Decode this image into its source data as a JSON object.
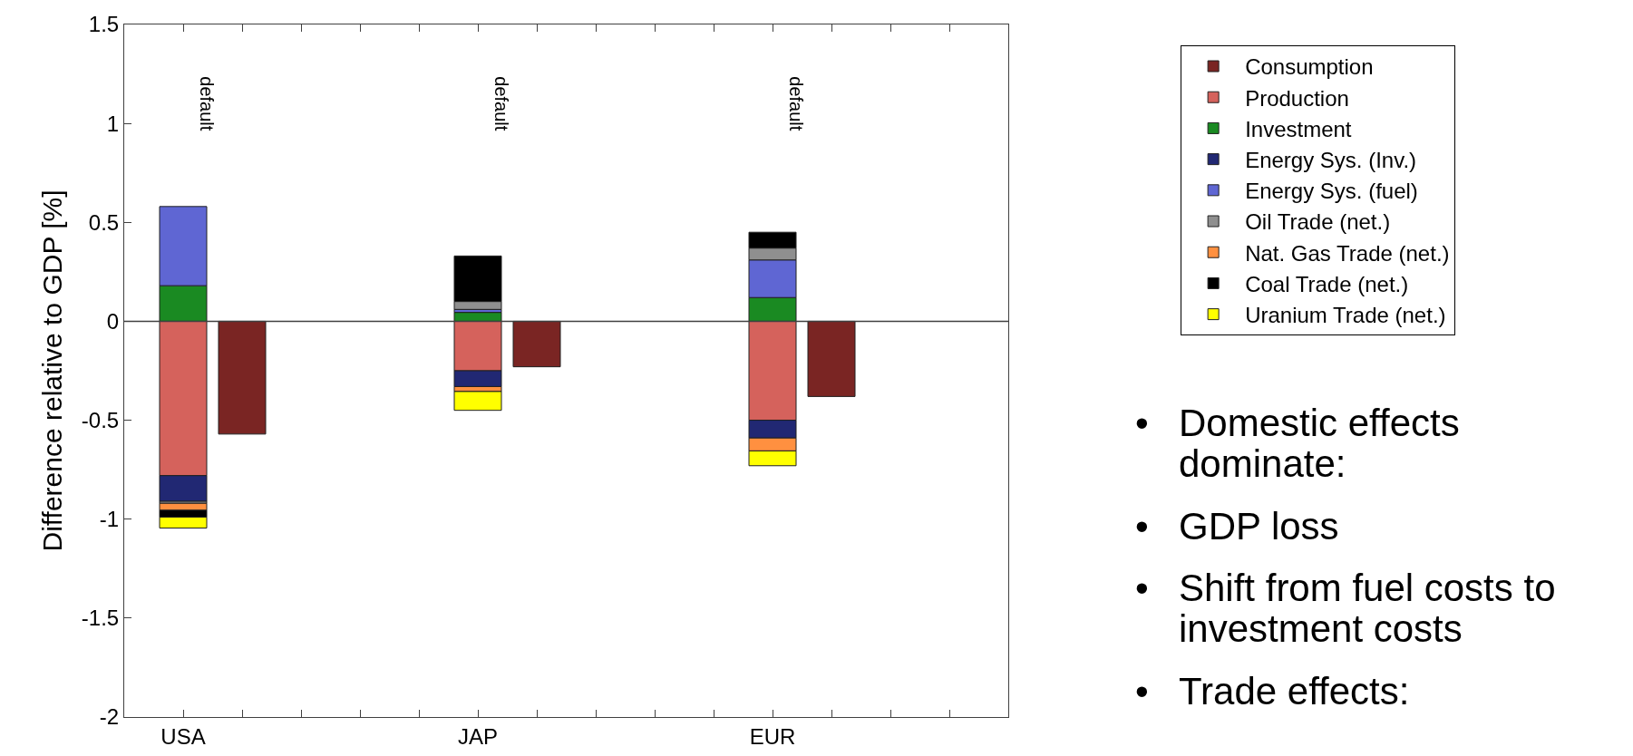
{
  "chart_data": {
    "type": "bar",
    "stacked": true,
    "ylabel": "Difference relative to GDP [%]",
    "categories": [
      "USA",
      null,
      null,
      null,
      null,
      "JAP",
      null,
      null,
      null,
      null,
      "EUR",
      null,
      null,
      null
    ],
    "series": [
      {
        "name": "Consumption",
        "color": "#7a2523",
        "values": [
          null,
          -0.57,
          null,
          null,
          null,
          null,
          -0.23,
          null,
          null,
          null,
          null,
          -0.38,
          null,
          null
        ]
      },
      {
        "name": "Production",
        "color": "#d5625c",
        "values": [
          -0.78,
          null,
          null,
          null,
          null,
          -0.25,
          null,
          null,
          null,
          null,
          -0.5,
          null,
          null,
          null
        ]
      },
      {
        "name": "Investment",
        "color": "#1a8a22",
        "values": [
          0.18,
          null,
          null,
          null,
          null,
          0.045,
          null,
          null,
          null,
          null,
          0.12,
          null,
          null,
          null
        ]
      },
      {
        "name": "Energy Sys. (Inv.)",
        "color": "#212873",
        "values": [
          -0.13,
          null,
          null,
          null,
          null,
          -0.08,
          null,
          null,
          null,
          null,
          -0.09,
          null,
          null,
          null
        ]
      },
      {
        "name": "Energy Sys. (fuel)",
        "color": "#5f66d3",
        "values": [
          0.4,
          null,
          null,
          null,
          null,
          0.015,
          null,
          null,
          null,
          null,
          0.19,
          null,
          null,
          null
        ]
      },
      {
        "name": "Oil Trade (net.)",
        "color": "#8f8f8f",
        "values": [
          -0.01,
          null,
          null,
          null,
          null,
          0.04,
          null,
          null,
          null,
          null,
          0.06,
          null,
          null,
          null
        ]
      },
      {
        "name": "Nat. Gas Trade (net.)",
        "color": "#ff9040",
        "values": [
          -0.035,
          null,
          null,
          null,
          null,
          -0.025,
          null,
          null,
          null,
          null,
          -0.065,
          null,
          null,
          null
        ]
      },
      {
        "name": "Coal Trade (net.)",
        "color": "#000000",
        "values": [
          -0.035,
          null,
          null,
          null,
          null,
          0.23,
          null,
          null,
          null,
          null,
          0.08,
          null,
          null,
          null
        ]
      },
      {
        "name": "Uranium Trade (net.)",
        "color": "#ffff00",
        "values": [
          -0.055,
          null,
          null,
          null,
          null,
          -0.095,
          null,
          null,
          null,
          null,
          -0.075,
          null,
          null,
          null
        ]
      }
    ],
    "ylim": [
      -2,
      1.5
    ],
    "yticks": [
      -2,
      -1.5,
      -1,
      -0.5,
      0,
      0.5,
      1,
      1.5
    ],
    "grid": false,
    "legend": "top right",
    "ref_lines": [
      {
        "axis": "y",
        "value": 0,
        "color": "#404040"
      }
    ],
    "annotations": [
      "default",
      "default",
      "default",
      "• Domestic effects dominate:",
      "• GDP loss",
      "• Shift from fuel costs to investment costs",
      "• Trade effects:"
    ]
  }
}
